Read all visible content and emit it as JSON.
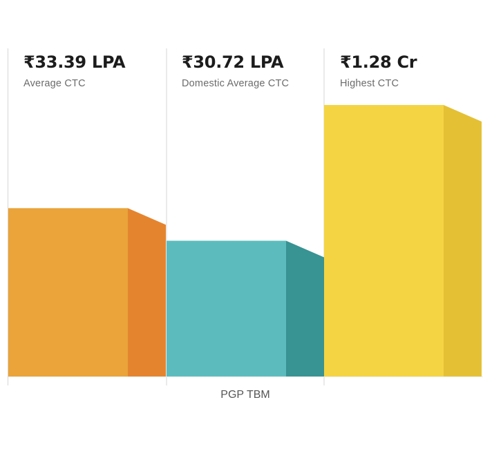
{
  "chart_data": {
    "type": "bar",
    "group_label": "PGP TBM",
    "categories": [
      "Average CTC",
      "Domestic Average CTC",
      "Highest CTC"
    ],
    "value_labels": [
      "₹33.39 LPA",
      "₹30.72 LPA",
      "₹1.28 Cr"
    ],
    "values_lpa": [
      33.39,
      30.72,
      128
    ],
    "scale": "non-linear (display only)",
    "bar_levels": [
      0.62,
      0.5,
      1.0
    ],
    "colors": [
      {
        "front": "#EAA43A",
        "side": "#E5842E"
      },
      {
        "front": "#5CBCBD",
        "side": "#389393"
      },
      {
        "front": "#F4D442",
        "side": "#E4C034"
      }
    ],
    "divider_color": "#D6D6D6"
  }
}
